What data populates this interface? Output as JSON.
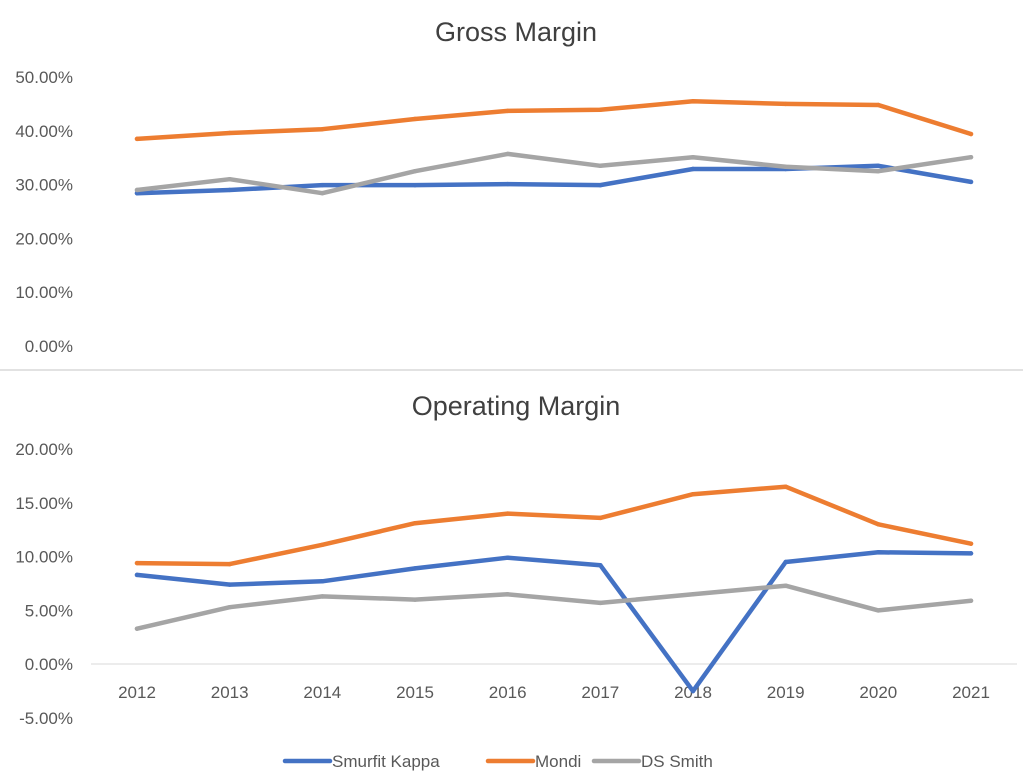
{
  "chart_data": [
    {
      "type": "line",
      "title": "Gross Margin",
      "xlabel": "",
      "ylabel": "",
      "categories": [
        "2012",
        "2013",
        "2014",
        "2015",
        "2016",
        "2017",
        "2018",
        "2019",
        "2020",
        "2021"
      ],
      "ylim": [
        0,
        50
      ],
      "yticks": [
        0,
        10,
        20,
        30,
        40,
        50
      ],
      "ytick_labels": [
        "0.00%",
        "10.00%",
        "20.00%",
        "30.00%",
        "40.00%",
        "50.00%"
      ],
      "show_xtick_labels": false,
      "grid": false,
      "series": [
        {
          "name": "Smurfit Kappa",
          "color": "#4472C4",
          "values": [
            28.4,
            29.0,
            29.9,
            29.9,
            30.1,
            29.9,
            32.9,
            32.9,
            33.5,
            30.5
          ]
        },
        {
          "name": "Mondi",
          "color": "#ED7D31",
          "values": [
            38.5,
            39.6,
            40.3,
            42.2,
            43.7,
            43.9,
            45.5,
            45.0,
            44.8,
            39.4
          ]
        },
        {
          "name": "DS Smith",
          "color": "#A5A5A5",
          "values": [
            29.0,
            31.0,
            28.4,
            32.5,
            35.7,
            33.5,
            35.1,
            33.3,
            32.5,
            35.1
          ]
        }
      ]
    },
    {
      "type": "line",
      "title": "Operating Margin",
      "xlabel": "",
      "ylabel": "",
      "categories": [
        "2012",
        "2013",
        "2014",
        "2015",
        "2016",
        "2017",
        "2018",
        "2019",
        "2020",
        "2021"
      ],
      "ylim": [
        -5,
        20
      ],
      "yticks": [
        -5,
        0,
        5,
        10,
        15,
        20
      ],
      "ytick_labels": [
        "-5.00%",
        "0.00%",
        "5.00%",
        "10.00%",
        "15.00%",
        "20.00%"
      ],
      "show_xtick_labels": true,
      "grid": false,
      "legend": "bottom",
      "series": [
        {
          "name": "Smurfit Kappa",
          "color": "#4472C4",
          "values": [
            8.3,
            7.4,
            7.7,
            8.9,
            9.9,
            9.2,
            -2.5,
            9.5,
            10.4,
            10.3
          ]
        },
        {
          "name": "Mondi",
          "color": "#ED7D31",
          "values": [
            9.4,
            9.3,
            11.1,
            13.1,
            14.0,
            13.6,
            15.8,
            16.5,
            13.0,
            11.2
          ]
        },
        {
          "name": "DS Smith",
          "color": "#A5A5A5",
          "values": [
            3.3,
            5.3,
            6.3,
            6.0,
            6.5,
            5.7,
            6.5,
            7.3,
            5.0,
            5.9
          ]
        }
      ]
    }
  ],
  "legend": {
    "items": [
      {
        "label": "Smurfit Kappa",
        "color": "#4472C4"
      },
      {
        "label": "Mondi",
        "color": "#ED7D31"
      },
      {
        "label": "DS Smith",
        "color": "#A5A5A5"
      }
    ]
  }
}
